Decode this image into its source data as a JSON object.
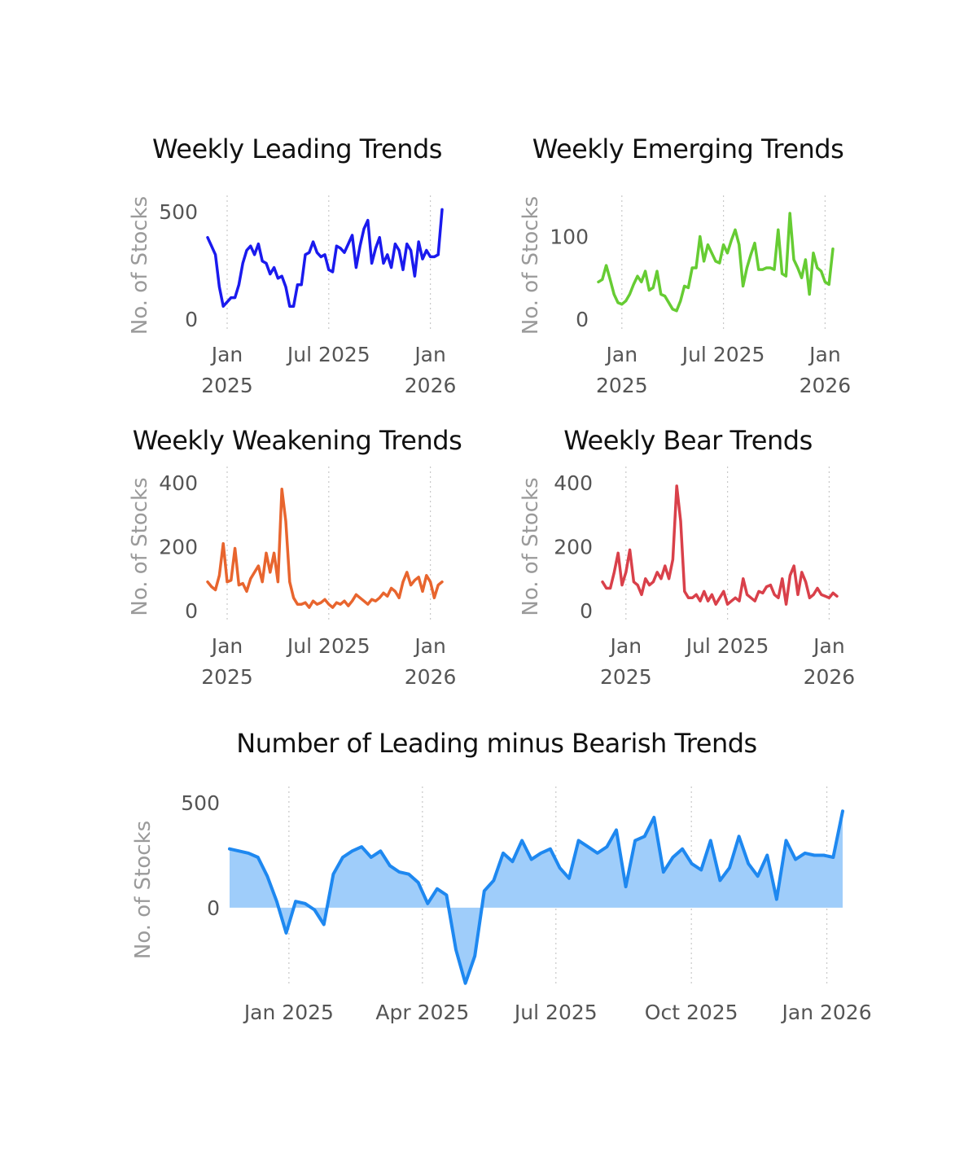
{
  "chart_data": [
    {
      "id": "leading",
      "type": "line",
      "title": "Weekly Leading Trends",
      "ylabel": "No. of Stocks",
      "ylim": [
        0,
        500
      ],
      "yticks": [
        {
          "value": 0,
          "label": "0"
        },
        {
          "value": 500,
          "label": "500"
        }
      ],
      "xlim": [
        0,
        60
      ],
      "xticks": [
        {
          "value": 5,
          "label": [
            "Jan",
            "2025"
          ]
        },
        {
          "value": 31,
          "label": [
            "Jul 2025"
          ]
        },
        {
          "value": 57,
          "label": [
            "Jan",
            "2026"
          ]
        }
      ],
      "color": "#1a1aee",
      "series": [
        {
          "name": "Leading",
          "values": [
            380,
            340,
            300,
            150,
            60,
            80,
            100,
            100,
            160,
            260,
            320,
            340,
            300,
            350,
            270,
            260,
            210,
            240,
            190,
            200,
            150,
            60,
            60,
            160,
            160,
            300,
            310,
            360,
            310,
            290,
            300,
            230,
            220,
            340,
            330,
            310,
            350,
            390,
            240,
            340,
            420,
            460,
            260,
            330,
            380,
            260,
            300,
            240,
            350,
            320,
            230,
            350,
            320,
            200,
            360,
            280,
            320,
            290,
            290,
            300,
            510
          ]
        }
      ]
    },
    {
      "id": "emerging",
      "type": "line",
      "title": "Weekly Emerging Trends",
      "ylabel": "No. of Stocks",
      "ylim": [
        0,
        130
      ],
      "yticks": [
        {
          "value": 0,
          "label": "0"
        },
        {
          "value": 100,
          "label": "100"
        }
      ],
      "xlim": [
        0,
        60
      ],
      "xticks": [
        {
          "value": 6,
          "label": [
            "Jan",
            "2025"
          ]
        },
        {
          "value": 32,
          "label": [
            "Jul 2025"
          ]
        },
        {
          "value": 58,
          "label": [
            "Jan",
            "2026"
          ]
        }
      ],
      "color": "#66cc33",
      "series": [
        {
          "name": "Emerging",
          "values": [
            45,
            48,
            65,
            48,
            30,
            20,
            18,
            22,
            30,
            42,
            52,
            45,
            58,
            35,
            38,
            58,
            30,
            28,
            20,
            12,
            10,
            22,
            40,
            38,
            62,
            62,
            100,
            70,
            90,
            80,
            70,
            68,
            90,
            80,
            95,
            108,
            90,
            40,
            62,
            78,
            92,
            60,
            60,
            62,
            62,
            60,
            108,
            55,
            52,
            128,
            72,
            62,
            50,
            72,
            30,
            80,
            62,
            58,
            45,
            42,
            85
          ]
        }
      ]
    },
    {
      "id": "weakening",
      "type": "line",
      "title": "Weekly Weakening Trends",
      "ylabel": "No. of Stocks",
      "ylim": [
        0,
        400
      ],
      "yticks": [
        {
          "value": 0,
          "label": "0"
        },
        {
          "value": 200,
          "label": "200"
        },
        {
          "value": 400,
          "label": "400"
        }
      ],
      "xlim": [
        0,
        60
      ],
      "xticks": [
        {
          "value": 5,
          "label": [
            "Jan",
            "2025"
          ]
        },
        {
          "value": 31,
          "label": [
            "Jul 2025"
          ]
        },
        {
          "value": 57,
          "label": [
            "Jan",
            "2026"
          ]
        }
      ],
      "color": "#e8652e",
      "series": [
        {
          "name": "Weakening",
          "values": [
            90,
            75,
            65,
            110,
            210,
            90,
            95,
            195,
            80,
            85,
            60,
            100,
            120,
            140,
            90,
            180,
            120,
            180,
            90,
            380,
            280,
            90,
            40,
            20,
            20,
            25,
            10,
            30,
            20,
            25,
            35,
            20,
            10,
            25,
            20,
            30,
            15,
            30,
            50,
            40,
            30,
            20,
            35,
            30,
            40,
            55,
            45,
            70,
            60,
            40,
            90,
            120,
            80,
            95,
            105,
            60,
            110,
            90,
            40,
            80,
            90
          ]
        }
      ]
    },
    {
      "id": "bear",
      "type": "line",
      "title": "Weekly Bear Trends",
      "ylabel": "No. of Stocks",
      "ylim": [
        0,
        400
      ],
      "yticks": [
        {
          "value": 0,
          "label": "0"
        },
        {
          "value": 200,
          "label": "200"
        },
        {
          "value": 400,
          "label": "400"
        }
      ],
      "xlim": [
        0,
        60
      ],
      "xticks": [
        {
          "value": 6,
          "label": [
            "Jan",
            "2025"
          ]
        },
        {
          "value": 32,
          "label": [
            "Jul 2025"
          ]
        },
        {
          "value": 58,
          "label": [
            "Jan",
            "2026"
          ]
        }
      ],
      "color": "#d9404a",
      "series": [
        {
          "name": "Bear",
          "values": [
            90,
            70,
            70,
            120,
            180,
            80,
            120,
            190,
            90,
            80,
            50,
            100,
            80,
            90,
            120,
            100,
            140,
            100,
            160,
            390,
            280,
            60,
            40,
            40,
            50,
            30,
            60,
            30,
            50,
            20,
            40,
            60,
            20,
            30,
            40,
            30,
            100,
            50,
            40,
            30,
            60,
            55,
            75,
            80,
            50,
            40,
            100,
            20,
            110,
            140,
            50,
            120,
            90,
            40,
            50,
            70,
            50,
            45,
            40,
            55,
            45
          ]
        }
      ]
    },
    {
      "id": "leading-minus-bearish",
      "type": "area",
      "title": "Number of Leading minus Bearish Trends",
      "ylabel": "No. of Stocks",
      "ylim": [
        -330,
        500
      ],
      "yticks": [
        {
          "value": 0,
          "label": "0"
        },
        {
          "value": 500,
          "label": "500"
        }
      ],
      "xlim": [
        0,
        62
      ],
      "xticks": [
        {
          "value": 6,
          "label": [
            "Jan 2025"
          ]
        },
        {
          "value": 19.5,
          "label": [
            "Apr 2025"
          ]
        },
        {
          "value": 33,
          "label": [
            "Jul 2025"
          ]
        },
        {
          "value": 46.7,
          "label": [
            "Oct 2025"
          ]
        },
        {
          "value": 60.4,
          "label": [
            "Jan 2026"
          ]
        }
      ],
      "color": "#1e88f0",
      "fill": "#9fcdfa",
      "series": [
        {
          "name": "Leading minus Bearish",
          "values": [
            280,
            270,
            260,
            240,
            150,
            30,
            -120,
            30,
            20,
            -10,
            -80,
            160,
            240,
            270,
            290,
            240,
            270,
            200,
            170,
            160,
            120,
            20,
            90,
            60,
            -200,
            -360,
            -230,
            80,
            130,
            260,
            220,
            320,
            230,
            260,
            280,
            190,
            140,
            320,
            290,
            260,
            290,
            370,
            100,
            320,
            340,
            430,
            170,
            240,
            280,
            210,
            180,
            320,
            130,
            190,
            340,
            210,
            150,
            250,
            40,
            320,
            230,
            260,
            250,
            250,
            240,
            460
          ]
        }
      ]
    }
  ]
}
